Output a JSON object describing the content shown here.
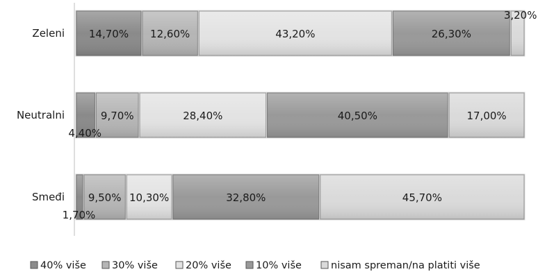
{
  "chart_data": {
    "type": "bar",
    "orientation": "horizontal",
    "stacked": "percent",
    "categories": [
      "Zeleni",
      "Neutralni",
      "Smeđi"
    ],
    "series": [
      {
        "name": "40% više",
        "values": [
          14.7,
          4.4,
          1.7
        ],
        "labels": [
          "14,70%",
          "4,40%",
          "1,70%"
        ],
        "color": "#8a8a8a"
      },
      {
        "name": "30% više",
        "values": [
          12.6,
          9.7,
          9.5
        ],
        "labels": [
          "12,60%",
          "9,70%",
          "9,50%"
        ],
        "color": "#b5b5b5"
      },
      {
        "name": "20% više",
        "values": [
          43.2,
          28.4,
          10.3
        ],
        "labels": [
          "43,20%",
          "28,40%",
          "10,30%"
        ],
        "color": "#e3e3e3"
      },
      {
        "name": "10% više",
        "values": [
          26.3,
          40.5,
          32.8
        ],
        "labels": [
          "26,30%",
          "40,50%",
          "32,80%"
        ],
        "color": "#999999"
      },
      {
        "name": "nisam spreman/na platiti više",
        "values": [
          3.2,
          17.0,
          45.7
        ],
        "labels": [
          "3,20%",
          "17,00%",
          "45,70%"
        ],
        "color": "#dadada"
      }
    ],
    "legend_position": "bottom",
    "grid": false
  }
}
